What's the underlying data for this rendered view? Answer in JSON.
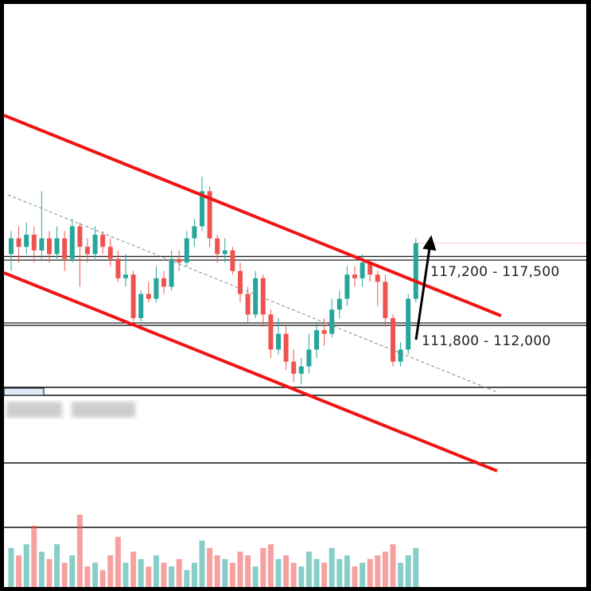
{
  "chart_data": {
    "type": "candlestick",
    "open": [
      117700,
      119000,
      118300,
      119300,
      118000,
      119000,
      117700,
      119000,
      117300,
      120000,
      118300,
      117700,
      119300,
      118300,
      117300,
      115700,
      116000,
      112400,
      114400,
      114000,
      115700,
      115000,
      117300,
      117000,
      119000,
      120000,
      122900,
      119000,
      117700,
      118000,
      116300,
      114400,
      112700,
      115700,
      112700,
      109800,
      111100,
      108800,
      107800,
      108400,
      109800,
      111400,
      111100,
      113100,
      114000,
      116000,
      115700,
      117000,
      116000,
      115400,
      112400,
      108800,
      109800,
      114000
    ],
    "high": [
      119600,
      120000,
      120300,
      120000,
      122900,
      119600,
      120000,
      119600,
      120600,
      120300,
      119000,
      120000,
      119600,
      119000,
      118000,
      117700,
      116300,
      114700,
      115400,
      116700,
      116300,
      118000,
      118000,
      119600,
      120600,
      124100,
      123300,
      119300,
      119000,
      118300,
      117000,
      115000,
      116300,
      116000,
      113100,
      112400,
      111700,
      109800,
      109100,
      111100,
      112100,
      112400,
      114000,
      114700,
      116700,
      116700,
      117700,
      117300,
      116300,
      116000,
      112700,
      110400,
      114400,
      119000
    ],
    "low": [
      116300,
      117000,
      117700,
      117000,
      117300,
      117000,
      117300,
      116300,
      117000,
      115000,
      117000,
      117300,
      117700,
      116700,
      115400,
      115000,
      112100,
      112100,
      113700,
      113700,
      114400,
      114700,
      116300,
      116700,
      118300,
      119600,
      118300,
      117000,
      117000,
      116000,
      113700,
      112100,
      112400,
      111700,
      109100,
      109400,
      108100,
      107100,
      106900,
      107800,
      109100,
      110100,
      110800,
      112400,
      113400,
      115000,
      115000,
      115400,
      113400,
      111700,
      108400,
      108400,
      109400,
      113700
    ],
    "close": [
      119000,
      118300,
      119300,
      118000,
      119000,
      117700,
      119000,
      117300,
      120000,
      118300,
      117700,
      119300,
      118300,
      117300,
      115700,
      116000,
      112400,
      114400,
      114000,
      115700,
      115000,
      117300,
      117000,
      119000,
      120000,
      122900,
      119000,
      117700,
      118000,
      116300,
      114400,
      112700,
      115700,
      112700,
      109800,
      111100,
      108800,
      107800,
      108400,
      109800,
      111400,
      111100,
      113100,
      114000,
      116000,
      115700,
      117000,
      116000,
      115400,
      112400,
      108800,
      109800,
      114000,
      118600
    ],
    "volume": [
      55,
      45,
      60,
      85,
      50,
      40,
      60,
      35,
      45,
      100,
      30,
      35,
      25,
      45,
      70,
      35,
      50,
      40,
      30,
      45,
      35,
      30,
      40,
      25,
      35,
      65,
      55,
      45,
      40,
      35,
      50,
      45,
      30,
      55,
      60,
      40,
      45,
      35,
      30,
      50,
      40,
      35,
      55,
      40,
      45,
      30,
      35,
      40,
      45,
      50,
      60,
      35,
      45,
      55
    ],
    "ylim": [
      106670,
      138390
    ],
    "volume_lim": [
      0,
      100
    ],
    "up_color": "#26a69a",
    "down_color": "#ef5350",
    "zones": [
      {
        "label": "117,200 - 117,500",
        "low": 117200,
        "high": 117500
      },
      {
        "label": "111,800 - 112,000",
        "low": 111800,
        "high": 112000
      }
    ]
  }
}
